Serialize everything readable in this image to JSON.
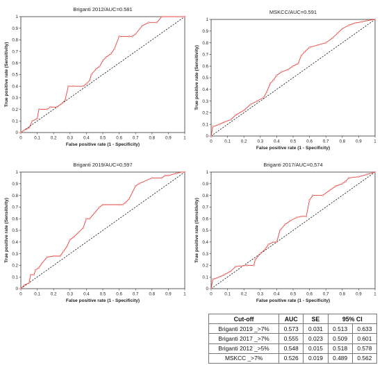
{
  "chart_data": [
    {
      "type": "line",
      "title": "Briganti 2012/AUC=0.581",
      "xlabel": "False positive rate (1 - Specificity)",
      "ylabel": "True positive rate (Sensitivity)",
      "xlim": [
        0,
        1
      ],
      "ylim": [
        0,
        1
      ],
      "ticks": [
        "0",
        "0.1",
        "0.2",
        "0.3",
        "0.4",
        "0.5",
        "0.6",
        "0.7",
        "0.8",
        "0.9",
        "1"
      ],
      "grid": false,
      "reference_line": [
        [
          0,
          0
        ],
        [
          1,
          1
        ]
      ],
      "series": [
        {
          "color": "#e8413c",
          "points": [
            [
              0,
              0
            ],
            [
              0.02,
              0.02
            ],
            [
              0.05,
              0.04
            ],
            [
              0.07,
              0.1
            ],
            [
              0.1,
              0.12
            ],
            [
              0.11,
              0.2
            ],
            [
              0.16,
              0.2
            ],
            [
              0.18,
              0.22
            ],
            [
              0.22,
              0.22
            ],
            [
              0.25,
              0.25
            ],
            [
              0.27,
              0.28
            ],
            [
              0.29,
              0.4
            ],
            [
              0.32,
              0.4
            ],
            [
              0.38,
              0.4
            ],
            [
              0.4,
              0.42
            ],
            [
              0.42,
              0.45
            ],
            [
              0.43,
              0.5
            ],
            [
              0.46,
              0.55
            ],
            [
              0.48,
              0.57
            ],
            [
              0.5,
              0.62
            ],
            [
              0.52,
              0.65
            ],
            [
              0.55,
              0.68
            ],
            [
              0.57,
              0.72
            ],
            [
              0.6,
              0.83
            ],
            [
              0.66,
              0.83
            ],
            [
              0.68,
              0.83
            ],
            [
              0.7,
              0.85
            ],
            [
              0.74,
              0.92
            ],
            [
              0.78,
              0.95
            ],
            [
              0.83,
              0.95
            ],
            [
              0.86,
              1
            ],
            [
              0.91,
              1
            ],
            [
              0.95,
              1
            ],
            [
              1,
              1
            ]
          ]
        }
      ]
    },
    {
      "type": "line",
      "title": "MSKCC/AUC=0.591",
      "xlabel": "False positive rate (1 - Specificity)",
      "ylabel": "True positive rate (Sensitivity)",
      "xlim": [
        0,
        1
      ],
      "ylim": [
        0,
        1
      ],
      "ticks": [
        "0",
        "0.1",
        "0.2",
        "0.3",
        "0.4",
        "0.5",
        "0.6",
        "0.7",
        "0.8",
        "0.9",
        "1"
      ],
      "grid": false,
      "reference_line": [
        [
          0,
          0
        ],
        [
          1,
          1
        ]
      ],
      "series": [
        {
          "color": "#e8413c",
          "points": [
            [
              0,
              0
            ],
            [
              0.01,
              0.08
            ],
            [
              0.05,
              0.1
            ],
            [
              0.08,
              0.12
            ],
            [
              0.12,
              0.14
            ],
            [
              0.15,
              0.18
            ],
            [
              0.2,
              0.22
            ],
            [
              0.24,
              0.27
            ],
            [
              0.28,
              0.3
            ],
            [
              0.32,
              0.33
            ],
            [
              0.34,
              0.38
            ],
            [
              0.36,
              0.45
            ],
            [
              0.38,
              0.48
            ],
            [
              0.4,
              0.52
            ],
            [
              0.43,
              0.55
            ],
            [
              0.47,
              0.57
            ],
            [
              0.5,
              0.6
            ],
            [
              0.53,
              0.62
            ],
            [
              0.55,
              0.69
            ],
            [
              0.57,
              0.72
            ],
            [
              0.6,
              0.76
            ],
            [
              0.65,
              0.78
            ],
            [
              0.7,
              0.8
            ],
            [
              0.74,
              0.84
            ],
            [
              0.77,
              0.88
            ],
            [
              0.8,
              0.92
            ],
            [
              0.84,
              0.95
            ],
            [
              0.88,
              0.97
            ],
            [
              0.92,
              0.98
            ],
            [
              0.95,
              0.99
            ],
            [
              1,
              1
            ]
          ]
        }
      ]
    },
    {
      "type": "line",
      "title": "Briganti 2019/AUC=0,597",
      "xlabel": "False positive rate (1 - Specificity)",
      "ylabel": "True positive rate (Sensitivity)",
      "xlim": [
        0,
        1
      ],
      "ylim": [
        0,
        1
      ],
      "ticks": [
        "0",
        "0.1",
        "0.2",
        "0.3",
        "0.4",
        "0.5",
        "0.6",
        "0.7",
        "0.8",
        "0.9",
        "1"
      ],
      "grid": false,
      "reference_line": [
        [
          0,
          0
        ],
        [
          1,
          1
        ]
      ],
      "series": [
        {
          "color": "#e8413c",
          "points": [
            [
              0,
              0
            ],
            [
              0.02,
              0.03
            ],
            [
              0.05,
              0.05
            ],
            [
              0.06,
              0.12
            ],
            [
              0.08,
              0.12
            ],
            [
              0.09,
              0.16
            ],
            [
              0.11,
              0.18
            ],
            [
              0.13,
              0.22
            ],
            [
              0.16,
              0.27
            ],
            [
              0.2,
              0.28
            ],
            [
              0.24,
              0.28
            ],
            [
              0.26,
              0.32
            ],
            [
              0.28,
              0.36
            ],
            [
              0.3,
              0.42
            ],
            [
              0.32,
              0.44
            ],
            [
              0.35,
              0.48
            ],
            [
              0.38,
              0.52
            ],
            [
              0.4,
              0.6
            ],
            [
              0.42,
              0.6
            ],
            [
              0.45,
              0.65
            ],
            [
              0.48,
              0.7
            ],
            [
              0.5,
              0.72
            ],
            [
              0.6,
              0.72
            ],
            [
              0.62,
              0.72
            ],
            [
              0.64,
              0.74
            ],
            [
              0.66,
              0.77
            ],
            [
              0.7,
              0.88
            ],
            [
              0.72,
              0.9
            ],
            [
              0.8,
              0.95
            ],
            [
              0.86,
              0.95
            ],
            [
              0.88,
              0.97
            ],
            [
              0.9,
              0.97
            ],
            [
              0.95,
              0.99
            ],
            [
              0.98,
              1
            ],
            [
              1,
              1
            ]
          ]
        }
      ]
    },
    {
      "type": "line",
      "title": "Briganti 2017/AUC=0,574",
      "xlabel": "False positive rate (1 - Specificity)",
      "ylabel": "True positive rate (Sensitivity)",
      "xlim": [
        0,
        1
      ],
      "ylim": [
        0,
        1
      ],
      "ticks": [
        "0",
        "0.1",
        "0.2",
        "0.3",
        "0.4",
        "0.5",
        "0.6",
        "0.7",
        "0.8",
        "0.9",
        "1"
      ],
      "grid": false,
      "reference_line": [
        [
          0,
          0
        ],
        [
          1,
          1
        ]
      ],
      "series": [
        {
          "color": "#e8413c",
          "points": [
            [
              0,
              0
            ],
            [
              0.01,
              0.08
            ],
            [
              0.05,
              0.1
            ],
            [
              0.08,
              0.12
            ],
            [
              0.12,
              0.15
            ],
            [
              0.15,
              0.19
            ],
            [
              0.22,
              0.2
            ],
            [
              0.26,
              0.2
            ],
            [
              0.27,
              0.25
            ],
            [
              0.3,
              0.3
            ],
            [
              0.33,
              0.34
            ],
            [
              0.35,
              0.38
            ],
            [
              0.38,
              0.4
            ],
            [
              0.4,
              0.4
            ],
            [
              0.42,
              0.5
            ],
            [
              0.45,
              0.55
            ],
            [
              0.48,
              0.58
            ],
            [
              0.52,
              0.61
            ],
            [
              0.55,
              0.62
            ],
            [
              0.58,
              0.62
            ],
            [
              0.6,
              0.76
            ],
            [
              0.62,
              0.8
            ],
            [
              0.68,
              0.8
            ],
            [
              0.72,
              0.84
            ],
            [
              0.76,
              0.88
            ],
            [
              0.8,
              0.9
            ],
            [
              0.82,
              0.92
            ],
            [
              0.84,
              0.95
            ],
            [
              0.9,
              0.96
            ],
            [
              0.95,
              0.98
            ],
            [
              1,
              1
            ]
          ]
        }
      ]
    }
  ],
  "table": {
    "headers": [
      "Cut-off",
      "AUC",
      "SE",
      "95% CI"
    ],
    "rows": [
      [
        "Briganti 2019 _>7%",
        "0.573",
        "0.031",
        "0.513",
        "0.633"
      ],
      [
        "Briganti 2017 _>7%",
        "0.555",
        "0.023",
        "0.509",
        "0.601"
      ],
      [
        "Briganti 2012 _>5%",
        "0.548",
        "0.015",
        "0.518",
        "0.578"
      ],
      [
        "MSKCC _>7%",
        "0.526",
        "0.019",
        "0.489",
        "0.562"
      ]
    ]
  }
}
